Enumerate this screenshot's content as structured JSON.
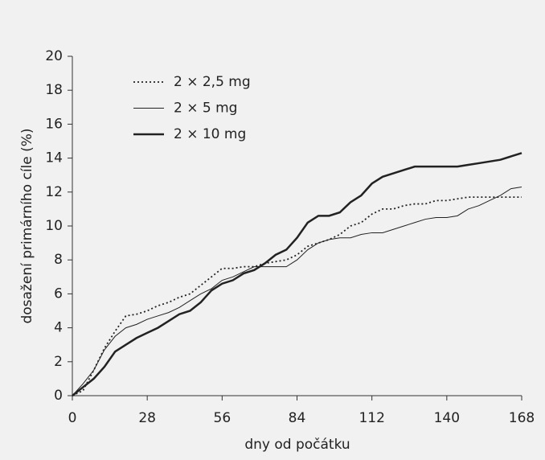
{
  "chart_data": {
    "type": "line",
    "x_label": "dny od počátku",
    "y_label": "dosažení primárního cíle (%)",
    "x": [
      0,
      4,
      8,
      12,
      16,
      20,
      24,
      28,
      32,
      36,
      40,
      44,
      48,
      52,
      56,
      60,
      64,
      68,
      72,
      76,
      80,
      84,
      88,
      92,
      96,
      100,
      104,
      108,
      112,
      116,
      120,
      124,
      128,
      132,
      136,
      140,
      144,
      148,
      152,
      156,
      160,
      164,
      168
    ],
    "series": [
      {
        "name": "2 × 2,5 mg",
        "color": "#222222",
        "line_style": "dotted",
        "line_width": 1.8,
        "values": [
          0,
          0.3,
          1.5,
          2.8,
          3.8,
          4.7,
          4.8,
          5.0,
          5.3,
          5.5,
          5.8,
          6.0,
          6.5,
          7.0,
          7.5,
          7.5,
          7.6,
          7.6,
          7.8,
          7.9,
          8.0,
          8.3,
          8.8,
          9.0,
          9.2,
          9.5,
          10.0,
          10.2,
          10.7,
          11.0,
          11.0,
          11.2,
          11.3,
          11.3,
          11.5,
          11.5,
          11.6,
          11.7,
          11.7,
          11.7,
          11.7,
          11.7,
          11.7
        ]
      },
      {
        "name": "2 × 5 mg",
        "color": "#222222",
        "line_style": "solid",
        "line_width": 1,
        "values": [
          0,
          0.7,
          1.5,
          2.7,
          3.5,
          4.0,
          4.2,
          4.5,
          4.7,
          4.9,
          5.2,
          5.6,
          6.0,
          6.3,
          6.8,
          7.0,
          7.3,
          7.6,
          7.6,
          7.6,
          7.6,
          8.0,
          8.6,
          9.0,
          9.2,
          9.3,
          9.3,
          9.5,
          9.6,
          9.6,
          9.8,
          10.0,
          10.2,
          10.4,
          10.5,
          10.5,
          10.6,
          11.0,
          11.2,
          11.5,
          11.8,
          12.2,
          12.3
        ]
      },
      {
        "name": "2 × 10 mg",
        "color": "#222222",
        "line_style": "solid",
        "line_width": 2.5,
        "values": [
          0,
          0.5,
          1.0,
          1.7,
          2.6,
          3.0,
          3.4,
          3.7,
          4.0,
          4.4,
          4.8,
          5.0,
          5.5,
          6.2,
          6.6,
          6.8,
          7.2,
          7.4,
          7.8,
          8.3,
          8.6,
          9.3,
          10.2,
          10.6,
          10.6,
          10.8,
          11.4,
          11.8,
          12.5,
          12.9,
          13.1,
          13.3,
          13.5,
          13.5,
          13.5,
          13.5,
          13.5,
          13.6,
          13.7,
          13.8,
          13.9,
          14.1,
          14.3
        ]
      }
    ],
    "xlim": [
      0,
      168
    ],
    "xticks": [
      0,
      28,
      56,
      84,
      112,
      140,
      168
    ],
    "ylim": [
      0,
      20
    ],
    "yticks": [
      0,
      2,
      4,
      6,
      8,
      10,
      12,
      14,
      16,
      18,
      20
    ],
    "legend": "upper left"
  }
}
